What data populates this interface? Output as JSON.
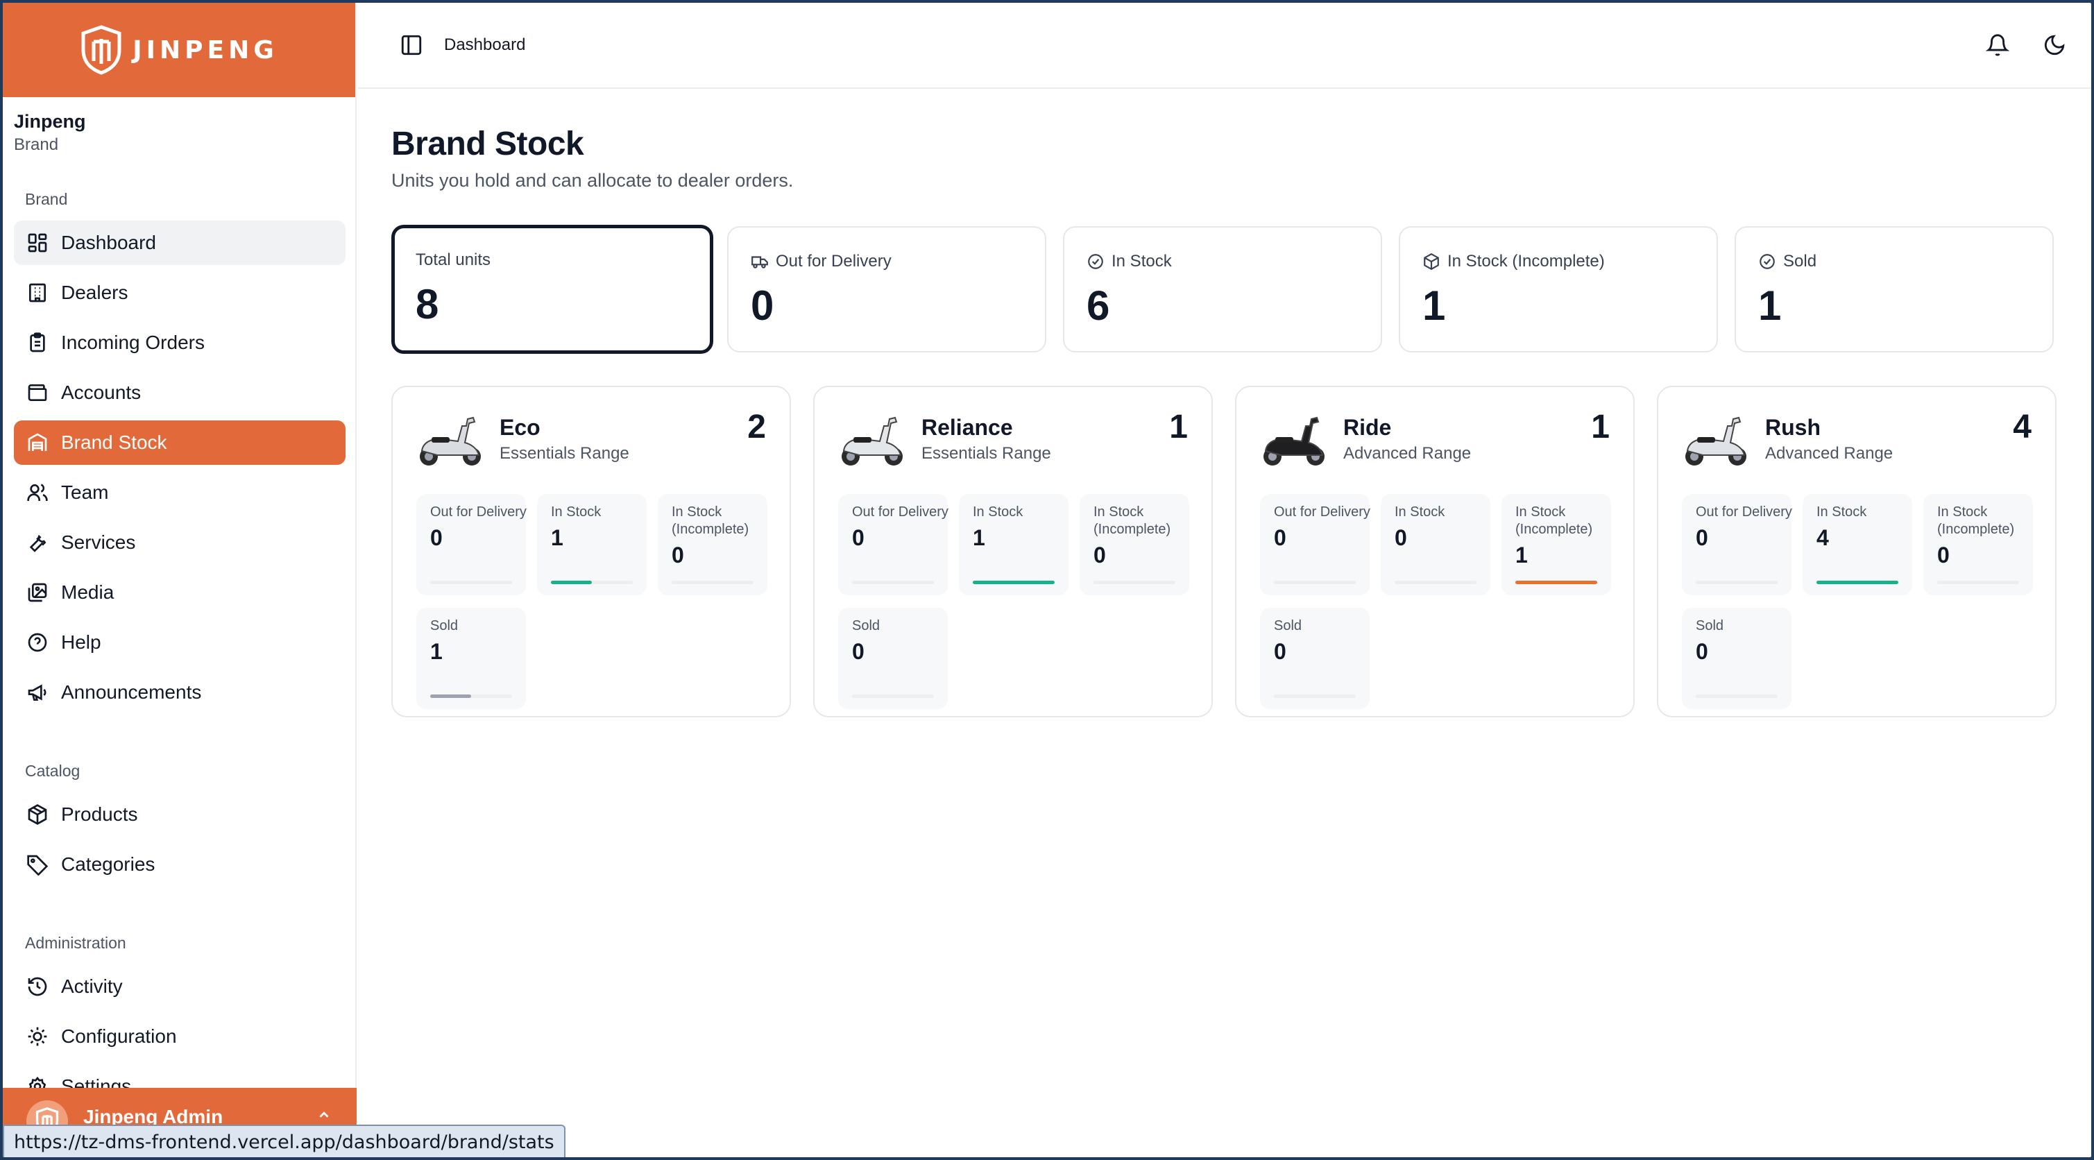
{
  "brand": {
    "logo_text": "JINPENG"
  },
  "org": {
    "name": "Jinpeng",
    "role": "Brand"
  },
  "sidebar": {
    "groups": [
      {
        "label": "Brand"
      },
      {
        "label": "Catalog"
      },
      {
        "label": "Administration"
      }
    ],
    "items": [
      {
        "label": "Dashboard",
        "icon": "layout-grid-icon"
      },
      {
        "label": "Dealers",
        "icon": "building-icon"
      },
      {
        "label": "Incoming Orders",
        "icon": "clipboard-list-icon"
      },
      {
        "label": "Accounts",
        "icon": "wallet-icon"
      },
      {
        "label": "Brand Stock",
        "icon": "warehouse-icon",
        "active": true
      },
      {
        "label": "Team",
        "icon": "users-icon"
      },
      {
        "label": "Services",
        "icon": "wrench-icon"
      },
      {
        "label": "Media",
        "icon": "images-icon"
      },
      {
        "label": "Help",
        "icon": "help-circle-icon"
      },
      {
        "label": "Announcements",
        "icon": "megaphone-icon"
      },
      {
        "label": "Products",
        "icon": "package-icon"
      },
      {
        "label": "Categories",
        "icon": "tag-icon"
      },
      {
        "label": "Activity",
        "icon": "history-icon"
      },
      {
        "label": "Configuration",
        "icon": "cog-icon"
      },
      {
        "label": "Settings",
        "icon": "settings-icon"
      }
    ],
    "user": {
      "name": "Jinpeng Admin"
    }
  },
  "status_url": "https://tz-dms-frontend.vercel.app/dashboard/brand/stats",
  "topbar": {
    "breadcrumb": "Dashboard"
  },
  "page": {
    "title": "Brand Stock",
    "subtitle": "Units you hold and can allocate to dealer orders."
  },
  "stats": [
    {
      "label": "Total units",
      "value": "8",
      "icon": ""
    },
    {
      "label": "Out for Delivery",
      "value": "0",
      "icon": "truck-icon"
    },
    {
      "label": "In Stock",
      "value": "6",
      "icon": "check-circle-icon"
    },
    {
      "label": "In Stock (Incomplete)",
      "value": "1",
      "icon": "box-icon"
    },
    {
      "label": "Sold",
      "value": "1",
      "icon": "check-circle-icon"
    }
  ],
  "cell_labels": {
    "out": "Out for Delivery",
    "in": "In Stock",
    "incomplete": "In Stock (Incomplete)",
    "sold": "Sold"
  },
  "models": [
    {
      "name": "Eco",
      "range": "Essentials Range",
      "count": "2",
      "out": "0",
      "in": "1",
      "incomplete": "0",
      "sold": "1",
      "fractions": {
        "out": 0,
        "in": 0.5,
        "incomplete": 0,
        "sold": 0.5
      }
    },
    {
      "name": "Reliance",
      "range": "Essentials Range",
      "count": "1",
      "out": "0",
      "in": "1",
      "incomplete": "0",
      "sold": "0",
      "fractions": {
        "out": 0,
        "in": 1,
        "incomplete": 0,
        "sold": 0
      }
    },
    {
      "name": "Ride",
      "range": "Advanced Range",
      "count": "1",
      "out": "0",
      "in": "0",
      "incomplete": "1",
      "sold": "0",
      "fractions": {
        "out": 0,
        "in": 0,
        "incomplete": 1,
        "sold": 0
      }
    },
    {
      "name": "Rush",
      "range": "Advanced Range",
      "count": "4",
      "out": "0",
      "in": "4",
      "incomplete": "0",
      "sold": "0",
      "fractions": {
        "out": 0,
        "in": 1,
        "incomplete": 0,
        "sold": 0
      }
    }
  ],
  "colors": {
    "accent": "#e1693a",
    "in_stock_bar": "#16b38a",
    "incomplete_bar": "#e8702f",
    "sold_bar": "#9ca3af"
  }
}
